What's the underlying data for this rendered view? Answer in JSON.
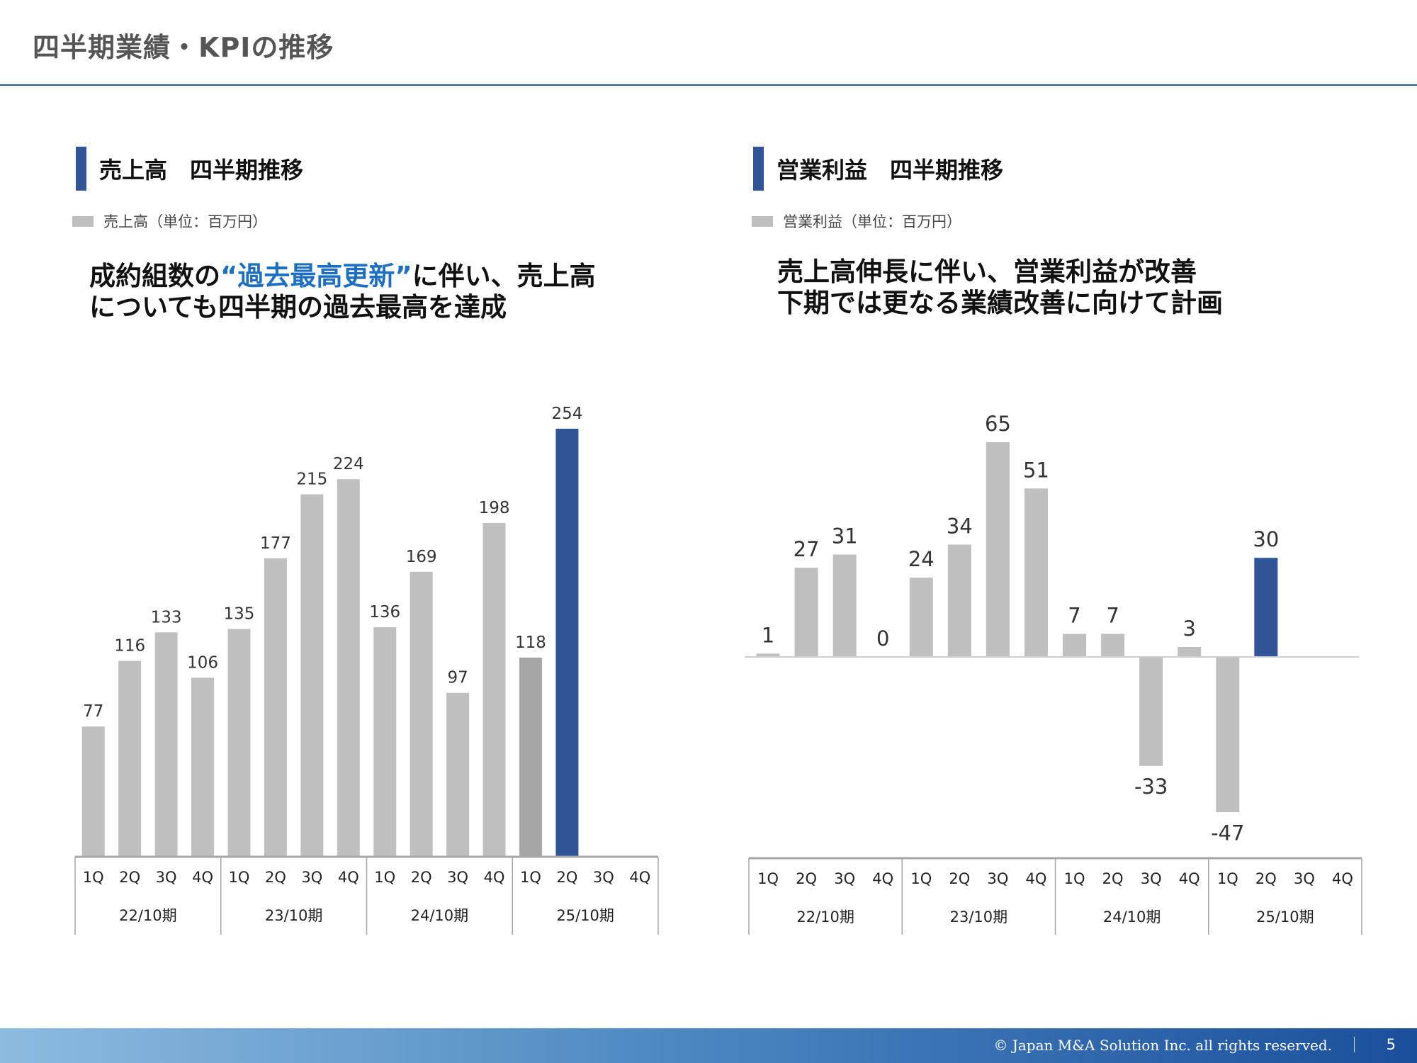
{
  "page": {
    "title": "四半期業績・KPIの推移",
    "copyright": "© Japan M&A Solution Inc. all rights reserved.",
    "page_number": "5"
  },
  "left": {
    "section_title": "売上高　四半期推移",
    "legend": "売上高（単位：百万円）",
    "headline_line1_pre": "成約組数の",
    "headline_line1_hl": "“過去最高更新”",
    "headline_line1_post": "に伴い、売上高",
    "headline_line2": "についても四半期の過去最高を達成"
  },
  "right": {
    "section_title": "営業利益　四半期推移",
    "legend": "営業利益（単位：百万円）",
    "headline_line1": "売上高伸長に伴い、営業利益が改善",
    "headline_line2": "下期では更なる業績改善に向けて計画"
  },
  "colors": {
    "bar": "#bfbfbf",
    "bar_alt": "#a6a6a6",
    "highlight": "#2f5597",
    "axis": "#a6a6a6"
  },
  "chart_data": [
    {
      "type": "bar",
      "title": "売上高　四半期推移",
      "unit": "百万円",
      "categories": [
        "1Q",
        "2Q",
        "3Q",
        "4Q",
        "1Q",
        "2Q",
        "3Q",
        "4Q",
        "1Q",
        "2Q",
        "3Q",
        "4Q",
        "1Q",
        "2Q",
        "3Q",
        "4Q"
      ],
      "groups": [
        "22/10期",
        "23/10期",
        "24/10期",
        "25/10期"
      ],
      "values": [
        77,
        116,
        133,
        106,
        135,
        177,
        215,
        224,
        136,
        169,
        97,
        198,
        118,
        254,
        null,
        null
      ],
      "labels": [
        "77",
        "116",
        "133",
        "106",
        "135",
        "177",
        "215",
        "224",
        "136",
        "169",
        "97",
        "198",
        "118",
        "254",
        "",
        ""
      ],
      "bar_colors": [
        "#bfbfbf",
        "#bfbfbf",
        "#bfbfbf",
        "#bfbfbf",
        "#bfbfbf",
        "#bfbfbf",
        "#bfbfbf",
        "#bfbfbf",
        "#bfbfbf",
        "#bfbfbf",
        "#bfbfbf",
        "#bfbfbf",
        "#a6a6a6",
        "#2f5597",
        "#bfbfbf",
        "#bfbfbf"
      ],
      "ylim": [
        0,
        254
      ]
    },
    {
      "type": "bar",
      "title": "営業利益　四半期推移",
      "unit": "百万円",
      "categories": [
        "1Q",
        "2Q",
        "3Q",
        "4Q",
        "1Q",
        "2Q",
        "3Q",
        "4Q",
        "1Q",
        "2Q",
        "3Q",
        "4Q",
        "1Q",
        "2Q",
        "3Q",
        "4Q"
      ],
      "groups": [
        "22/10期",
        "23/10期",
        "24/10期",
        "25/10期"
      ],
      "values": [
        1,
        27,
        31,
        0,
        24,
        34,
        65,
        51,
        7,
        7,
        -33,
        3,
        -47,
        30,
        null,
        null
      ],
      "labels": [
        "1",
        "27",
        "31",
        "0",
        "24",
        "34",
        "65",
        "51",
        "7",
        "7",
        "-33",
        "3",
        "-47",
        "30",
        "",
        ""
      ],
      "bar_colors": [
        "#bfbfbf",
        "#bfbfbf",
        "#bfbfbf",
        "#bfbfbf",
        "#bfbfbf",
        "#bfbfbf",
        "#bfbfbf",
        "#bfbfbf",
        "#bfbfbf",
        "#bfbfbf",
        "#bfbfbf",
        "#bfbfbf",
        "#bfbfbf",
        "#2f5597",
        "#bfbfbf",
        "#bfbfbf"
      ],
      "ylim": [
        -47,
        65
      ]
    }
  ]
}
